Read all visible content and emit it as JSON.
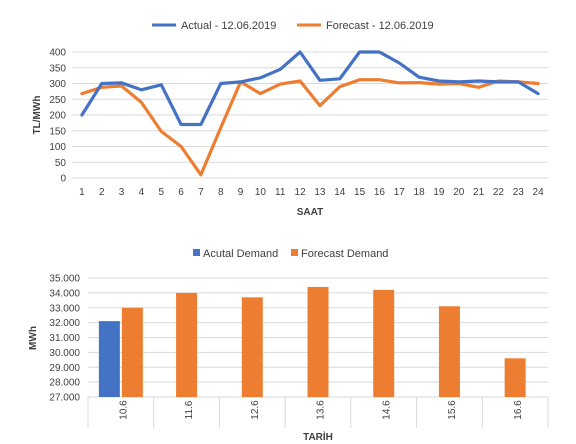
{
  "chart_data": [
    {
      "type": "line",
      "xlabel": "SAAT",
      "ylabel": "TL/MWh",
      "x": [
        1,
        2,
        3,
        4,
        5,
        6,
        7,
        8,
        9,
        10,
        11,
        12,
        13,
        14,
        15,
        16,
        17,
        18,
        19,
        20,
        21,
        22,
        23,
        24
      ],
      "ylim": [
        0,
        400
      ],
      "yticks": [
        0,
        50,
        100,
        150,
        200,
        250,
        300,
        350,
        400
      ],
      "grid": true,
      "legend_position": "top",
      "series": [
        {
          "name": "Actual - 12.06.2019",
          "color": "#4472c4",
          "values": [
            200,
            300,
            302,
            280,
            296,
            170,
            170,
            300,
            305,
            318,
            345,
            400,
            310,
            315,
            400,
            400,
            365,
            320,
            308,
            305,
            308,
            305,
            305,
            268
          ]
        },
        {
          "name": "Forecast - 12.06.2019",
          "color": "#ed7d31",
          "values": [
            268,
            288,
            292,
            240,
            148,
            100,
            10,
            160,
            305,
            268,
            298,
            308,
            230,
            290,
            312,
            312,
            302,
            303,
            298,
            300,
            288,
            308,
            305,
            300
          ]
        }
      ]
    },
    {
      "type": "bar",
      "xlabel": "TARİH",
      "ylabel": "MWh",
      "categories": [
        "10.6",
        "11.6",
        "12.6",
        "13.6",
        "14.6",
        "15.6",
        "16.6"
      ],
      "ylim": [
        27000,
        35000
      ],
      "yticks": [
        "27.000",
        "28.000",
        "29.000",
        "30.000",
        "31.000",
        "32.000",
        "33.000",
        "34.000",
        "35.000"
      ],
      "grid": true,
      "legend_position": "top",
      "series": [
        {
          "name": "Acutal Demand",
          "color": "#4472c4",
          "values": [
            32100,
            null,
            null,
            null,
            null,
            null,
            null
          ]
        },
        {
          "name": "Forecast Demand",
          "color": "#ed7d31",
          "values": [
            33000,
            34000,
            33700,
            34400,
            34200,
            33100,
            29600
          ]
        }
      ]
    }
  ]
}
